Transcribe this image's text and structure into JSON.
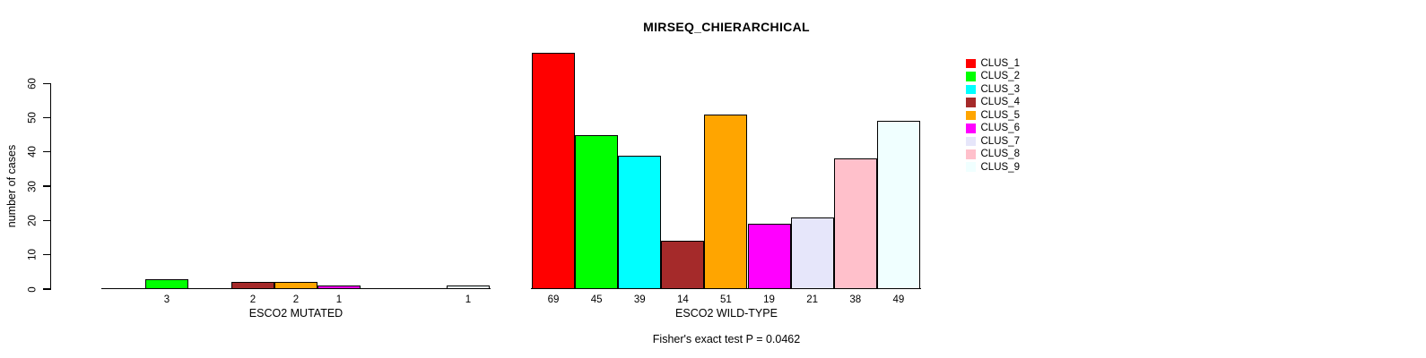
{
  "chart_data": {
    "type": "bar",
    "title": "MIRSEQ_CHIERARCHICAL",
    "ylabel": "number of cases",
    "xlabel": "",
    "annotation": "Fisher's exact test P = 0.0462",
    "yticks": [
      0,
      10,
      20,
      30,
      40,
      50,
      60
    ],
    "ylim": [
      0,
      69
    ],
    "grid": false,
    "legend_position": "right",
    "bar_border_color": "#000000",
    "legend": [
      {
        "label": "CLUS_1",
        "color": "#FF0000"
      },
      {
        "label": "CLUS_2",
        "color": "#00FF00"
      },
      {
        "label": "CLUS_3",
        "color": "#00FFFF"
      },
      {
        "label": "CLUS_4",
        "color": "#A52A2A"
      },
      {
        "label": "CLUS_5",
        "color": "#FFA500"
      },
      {
        "label": "CLUS_6",
        "color": "#FF00FF"
      },
      {
        "label": "CLUS_7",
        "color": "#E6E6FA"
      },
      {
        "label": "CLUS_8",
        "color": "#FFC0CB"
      },
      {
        "label": "CLUS_9",
        "color": "#F0FFFF"
      }
    ],
    "groups": [
      {
        "label": "ESCO2 MUTATED",
        "categories": [
          "CLUS_1",
          "CLUS_2",
          "CLUS_3",
          "CLUS_4",
          "CLUS_5",
          "CLUS_6",
          "CLUS_7",
          "CLUS_8",
          "CLUS_9"
        ],
        "values": [
          0,
          3,
          0,
          2,
          2,
          1,
          0,
          0,
          1
        ]
      },
      {
        "label": "ESCO2 WILD-TYPE",
        "categories": [
          "CLUS_1",
          "CLUS_2",
          "CLUS_3",
          "CLUS_4",
          "CLUS_5",
          "CLUS_6",
          "CLUS_7",
          "CLUS_8",
          "CLUS_9"
        ],
        "values": [
          69,
          45,
          39,
          14,
          51,
          19,
          21,
          38,
          49
        ]
      }
    ]
  }
}
